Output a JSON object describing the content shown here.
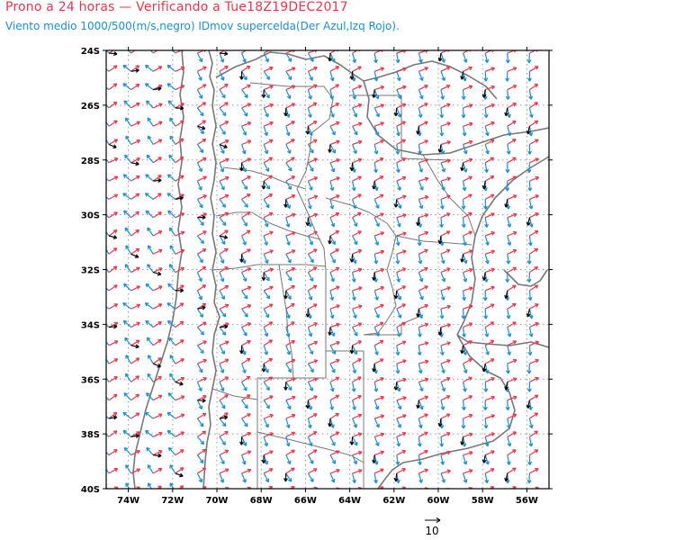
{
  "header": {
    "title": "Prono a 24 horas — Verificando a Tue18Z19DEC2017",
    "subtitle": "Viento medio 1000/500(m/s,negro) IDmov supercelda(Der Azul,Izq Rojo)."
  },
  "map": {
    "lon_range": [
      -75,
      -55
    ],
    "lat_range": [
      -40,
      -24
    ],
    "grid": "dotted",
    "lat_ticks": [
      "24S",
      "26S",
      "28S",
      "30S",
      "32S",
      "34S",
      "36S",
      "38S",
      "40S"
    ],
    "lon_ticks": [
      "74W",
      "72W",
      "70W",
      "68W",
      "66W",
      "64W",
      "62W",
      "60W",
      "58W",
      "56W"
    ],
    "reference_vector": {
      "label": "10",
      "speed": 10
    }
  },
  "colors": {
    "mean_wind": "#000000",
    "right_mover": "#1c8fd1",
    "left_mover": "#e8384f",
    "borders": "#777777",
    "grid": "#999999"
  }
}
